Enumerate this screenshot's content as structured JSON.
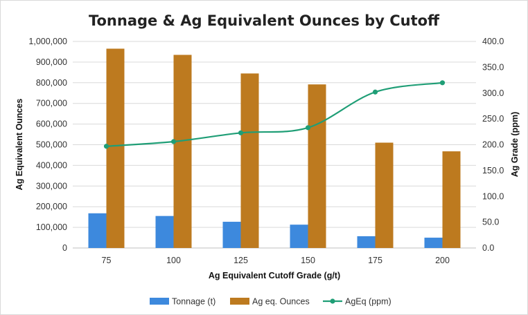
{
  "chart_data": {
    "type": "bar",
    "title": "Tonnage & Ag Equivalent Ounces by Cutoff",
    "xlabel": "Ag Equivalent Cutoff Grade (g/t)",
    "ylabel": "Ag Equivalent Ounces",
    "y2label": "Ag Grade (ppm)",
    "categories": [
      "75",
      "100",
      "125",
      "150",
      "175",
      "200"
    ],
    "ylim": [
      0,
      1000000
    ],
    "y2lim": [
      0,
      400
    ],
    "y_ticks": [
      "0",
      "100,000",
      "200,000",
      "300,000",
      "400,000",
      "500,000",
      "600,000",
      "700,000",
      "800,000",
      "900,000",
      "1,000,000"
    ],
    "y2_ticks": [
      "0.0",
      "50.0",
      "100.0",
      "150.0",
      "200.0",
      "250.0",
      "300.0",
      "350.0",
      "400.0"
    ],
    "grid": true,
    "legend_position": "bottom",
    "series": [
      {
        "name": "Tonnage (t)",
        "type": "bar",
        "axis": "left",
        "color": "#3d89dd",
        "values": [
          168000,
          155000,
          127000,
          113000,
          57000,
          50000
        ]
      },
      {
        "name": "Ag eq. Ounces",
        "type": "bar",
        "axis": "left",
        "color": "#bd7a1f",
        "values": [
          965000,
          935000,
          845000,
          792000,
          510000,
          468000
        ]
      },
      {
        "name": "AgEq (ppm)",
        "type": "line",
        "axis": "right",
        "color": "#1f9e76",
        "values": [
          197,
          206,
          223,
          233,
          302,
          320
        ]
      }
    ]
  }
}
